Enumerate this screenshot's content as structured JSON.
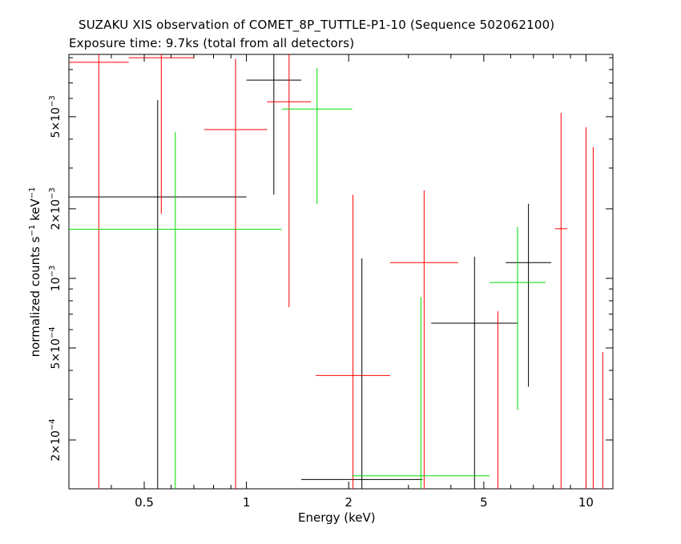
{
  "chart_data": {
    "type": "scatter",
    "title": "SUZAKU XIS observation of COMET_8P_TUTTLE-P1-10 (Sequence 502062100)",
    "subtitle": "Exposure time: 9.7ks (total from all detectors)",
    "xlabel": "Energy (keV)",
    "ylabel_parts": {
      "pre": "normalized counts s",
      "sup1": "−1",
      "mid": " keV",
      "sup2": "−1"
    },
    "xscale": "log",
    "yscale": "log",
    "xlim": [
      0.3,
      12.0
    ],
    "ylim": [
      0.000123,
      0.0093
    ],
    "x_ticks": [
      {
        "value": 0.5,
        "label": "0.5"
      },
      {
        "value": 1,
        "label": "1"
      },
      {
        "value": 2,
        "label": "2"
      },
      {
        "value": 5,
        "label": "5"
      },
      {
        "value": 10,
        "label": "10"
      }
    ],
    "y_ticks": [
      {
        "value": 0.0002,
        "mantissa": "2×10",
        "exp": "−4"
      },
      {
        "value": 0.0005,
        "mantissa": "5×10",
        "exp": "−4"
      },
      {
        "value": 0.001,
        "mantissa": "10",
        "exp": "−3"
      },
      {
        "value": 0.002,
        "mantissa": "2×10",
        "exp": "−3"
      },
      {
        "value": 0.005,
        "mantissa": "5×10",
        "exp": "−3"
      }
    ],
    "series": [
      {
        "color": "#000000",
        "points": [
          {
            "xlo": 0.3,
            "xhi": 1.0,
            "y": 0.00225,
            "ylo": 0.000123,
            "yhi": 0.0059
          },
          {
            "xlo": 1.0,
            "xhi": 1.45,
            "y": 0.0072,
            "ylo": 0.0023,
            "yhi": 0.0093
          },
          {
            "xlo": 1.45,
            "xhi": 3.3,
            "y": 0.000135,
            "ylo": 0.000123,
            "yhi": 0.00122
          },
          {
            "xlo": 3.5,
            "xhi": 6.3,
            "y": 0.00064,
            "ylo": 0.000123,
            "yhi": 0.00124
          },
          {
            "xlo": 5.8,
            "xhi": 7.9,
            "y": 0.00117,
            "ylo": 0.00034,
            "yhi": 0.0021
          }
        ]
      },
      {
        "color": "#ff0000",
        "points": [
          {
            "xlo": 0.3,
            "xhi": 0.45,
            "y": 0.0086,
            "ylo": 0.000123,
            "yhi": 0.0093
          },
          {
            "xlo": 0.45,
            "xhi": 0.7,
            "y": 0.009,
            "ylo": 0.0019,
            "yhi": 0.0093
          },
          {
            "xlo": 0.75,
            "xhi": 1.15,
            "y": 0.0044,
            "ylo": 0.000123,
            "yhi": 0.0089
          },
          {
            "xlo": 1.15,
            "xhi": 1.55,
            "y": 0.0058,
            "ylo": 0.00075,
            "yhi": 0.0093
          },
          {
            "xlo": 1.6,
            "xhi": 2.65,
            "y": 0.00038,
            "ylo": 0.000123,
            "yhi": 0.0023
          },
          {
            "xlo": 2.65,
            "xhi": 4.2,
            "y": 0.00117,
            "ylo": 0.000123,
            "yhi": 0.0024
          },
          {
            "xlo": 5.5,
            "xhi": 5.5,
            "y": 0.00072,
            "ylo": 0.000123,
            "yhi": 0.00072
          },
          {
            "xlo": 8.1,
            "xhi": 8.8,
            "y": 0.00164,
            "ylo": 0.000123,
            "yhi": 0.0052
          },
          {
            "xlo": 10.0,
            "xhi": 10.0,
            "y": 0.0045,
            "ylo": 0.000123,
            "yhi": 0.0045
          },
          {
            "xlo": 10.5,
            "xhi": 10.5,
            "y": 0.0037,
            "ylo": 0.000123,
            "yhi": 0.0037
          },
          {
            "xlo": 11.2,
            "xhi": 11.2,
            "y": 0.00048,
            "ylo": 0.000123,
            "yhi": 0.00048
          }
        ]
      },
      {
        "color": "#00dd00",
        "points": [
          {
            "xlo": 0.3,
            "xhi": 1.27,
            "y": 0.00163,
            "ylo": 0.000123,
            "yhi": 0.0043
          },
          {
            "xlo": 1.27,
            "xhi": 2.05,
            "y": 0.0054,
            "ylo": 0.0021,
            "yhi": 0.0081
          },
          {
            "xlo": 2.05,
            "xhi": 5.2,
            "y": 0.00014,
            "ylo": 0.000123,
            "yhi": 0.00083
          },
          {
            "xlo": 5.2,
            "xhi": 7.6,
            "y": 0.00096,
            "ylo": 0.00027,
            "yhi": 0.00167
          }
        ]
      }
    ]
  }
}
